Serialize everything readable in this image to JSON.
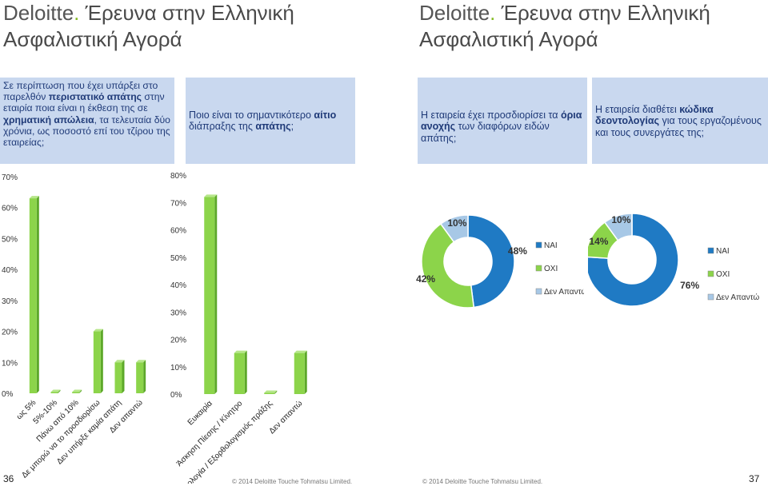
{
  "header": {
    "left": {
      "brand": "Deloitte",
      "dot": ".",
      "title1": " Έρευνα στην Ελληνική",
      "title2": "Ασφαλιστική Αγορά"
    },
    "right": {
      "brand": "Deloitte",
      "dot": ".",
      "title1": " Έρευνα στην Ελληνική",
      "title2": "Ασφαλιστική Αγορά"
    }
  },
  "questions": {
    "q1": {
      "p1": "Σε περίπτωση που έχει υπάρξει στο παρελθόν ",
      "b1": "περιστατικό απάτης",
      "p2": " στην εταιρία ποια είναι η έκθεση της σε ",
      "b2": "χρηματική απώλεια",
      "p3": ", τα τελευταία δύο χρόνια, ως ποσοστό επί του τζίρου της εταιρείας;"
    },
    "q2": {
      "p1": "Ποιο είναι το σημαντικότερο ",
      "b1": "αίτιο",
      "p2": " διάπραξης της ",
      "b2": "απάτης",
      "p3": ";"
    },
    "q3": {
      "p1": "Η εταιρεία έχει προσδιορίσει τα ",
      "b1": "όρια ανοχής",
      "p2": " των διαφόρων ειδών απάτης;"
    },
    "q4": {
      "p1": "Η εταιρεία διαθέτει ",
      "b1": "κώδικα δεοντολογίας",
      "p2": " για τους εργαζομένους και τους συνεργάτες της;"
    }
  },
  "colors": {
    "bar": "#8cd44a",
    "bar_dark": "#5da82a",
    "donut_blue": "#1f7ac4",
    "donut_green": "#8cd44a",
    "donut_light": "#a7c8e6",
    "question_bg": "#c9d8ef",
    "question_text": "#1f3a78",
    "brand_dot": "#86bc25"
  },
  "chart_data": [
    {
      "type": "bar",
      "categories": [
        "ως 5%",
        "5%-10%",
        "Πάνω από 10%",
        "Δε μπορώ να το προσδιορίσω",
        "Δεν υπήρξε καμία απάτη",
        "Δεν απαντώ"
      ],
      "values": [
        63,
        0,
        0,
        20,
        10,
        10
      ],
      "ylim": [
        0,
        70
      ],
      "yticks": [
        "0%",
        "10%",
        "20%",
        "30%",
        "40%",
        "50%",
        "60%",
        "70%"
      ]
    },
    {
      "type": "bar",
      "categories": [
        "Ευκαιρία",
        "Άσκηση Πίεσης / Κίνητρο",
        "Απολογία / Εξορθολογισμός πράξης",
        "Δεν απαντώ"
      ],
      "values": [
        72,
        15,
        0,
        15
      ],
      "ylim": [
        0,
        80
      ],
      "yticks": [
        "0%",
        "10%",
        "20%",
        "30%",
        "40%",
        "50%",
        "60%",
        "70%",
        "80%"
      ]
    },
    {
      "type": "pie",
      "categories": [
        "ΝΑΙ",
        "ΟΧΙ",
        "Δεν Απαντώ"
      ],
      "values": [
        48,
        42,
        10
      ],
      "labels": [
        "48%",
        "42%",
        "10%"
      ]
    },
    {
      "type": "pie",
      "categories": [
        "ΝΑΙ",
        "ΟΧΙ",
        "Δεν Απαντώ"
      ],
      "values": [
        76,
        14,
        10
      ],
      "labels": [
        "76%",
        "14%",
        "10%"
      ]
    }
  ],
  "footer": {
    "page_left": "36",
    "page_right": "37",
    "copyright_left": "© 2014 Deloitte Touche Tohmatsu Limited.",
    "copyright_right": "© 2014 Deloitte Touche Tohmatsu Limited."
  }
}
